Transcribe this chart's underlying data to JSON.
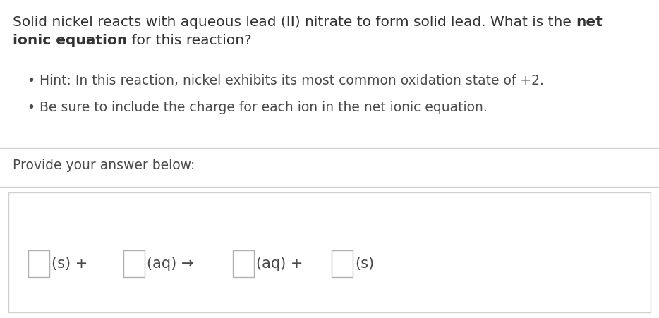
{
  "bg_color": "#ffffff",
  "text_color": "#333333",
  "hint_color": "#4a4a4a",
  "separator_color": "#d0d0d0",
  "box_border_color": "#b0b0b0",
  "font_size_title": 14.5,
  "font_size_hints": 13.5,
  "font_size_provide": 13.5,
  "font_size_equation": 15,
  "line1_normal": "Solid nickel reacts with aqueous lead (II) nitrate to form solid lead. What is the ",
  "line1_bold": "net",
  "line2_bold": "ionic equation",
  "line2_normal": " for this reaction?",
  "hint1_text": "Hint: In this reaction, nickel exhibits its most common oxidation state of +2.",
  "hint2_text": "Be sure to include the charge for each ion in the net ionic equation.",
  "provide_text": "Provide your answer below:",
  "eq_texts": [
    "(s) + ",
    "(aq) →",
    "(aq) + ",
    "(s)"
  ]
}
